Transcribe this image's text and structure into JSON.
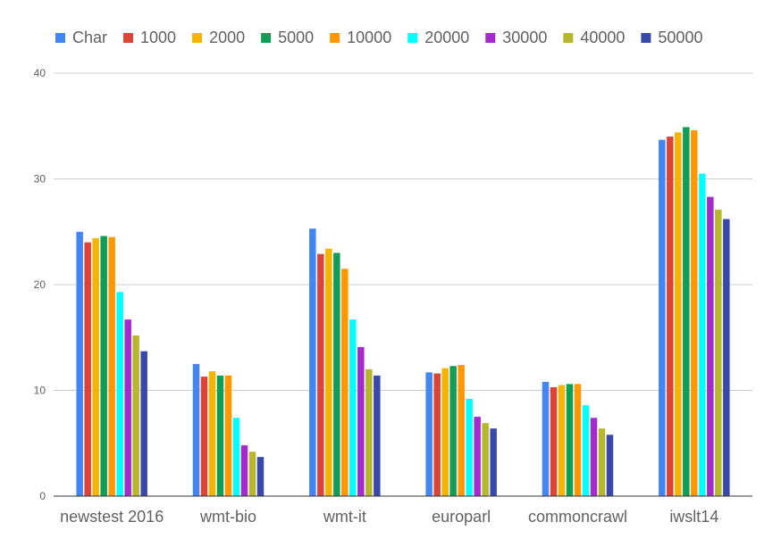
{
  "chart_data": {
    "type": "bar",
    "categories": [
      "newstest 2016",
      "wmt-bio",
      "wmt-it",
      "europarl",
      "commoncrawl",
      "iwslt14"
    ],
    "series": [
      {
        "name": "Char",
        "color": "#4285f4",
        "values": [
          25.0,
          12.5,
          25.3,
          11.7,
          10.8,
          33.7
        ]
      },
      {
        "name": "1000",
        "color": "#db4437",
        "values": [
          24.0,
          11.3,
          22.9,
          11.6,
          10.3,
          34.0
        ]
      },
      {
        "name": "2000",
        "color": "#f4b400",
        "values": [
          24.4,
          11.8,
          23.4,
          12.1,
          10.5,
          34.4
        ]
      },
      {
        "name": "5000",
        "color": "#0f9d58",
        "values": [
          24.6,
          11.4,
          23.0,
          12.3,
          10.6,
          34.9
        ]
      },
      {
        "name": "10000",
        "color": "#ff9800",
        "values": [
          24.5,
          11.4,
          21.5,
          12.4,
          10.6,
          34.6
        ]
      },
      {
        "name": "20000",
        "color": "#00ffff",
        "values": [
          19.3,
          7.4,
          16.7,
          9.2,
          8.6,
          30.5
        ]
      },
      {
        "name": "30000",
        "color": "#a52acc",
        "values": [
          16.7,
          4.8,
          14.1,
          7.5,
          7.4,
          28.3
        ]
      },
      {
        "name": "40000",
        "color": "#b7b72c",
        "values": [
          15.2,
          4.2,
          12.0,
          6.9,
          6.4,
          27.1
        ]
      },
      {
        "name": "50000",
        "color": "#3949ab",
        "values": [
          13.7,
          3.7,
          11.4,
          6.4,
          5.8,
          26.2
        ]
      }
    ],
    "yticks": [
      "0",
      "10",
      "20",
      "30",
      "40"
    ],
    "ylim": [
      0,
      40
    ],
    "grid": true,
    "legend_position": "top"
  }
}
